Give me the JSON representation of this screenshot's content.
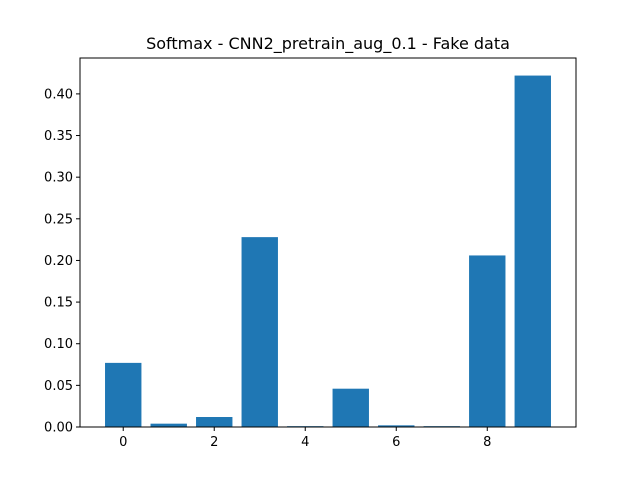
{
  "chart_data": {
    "type": "bar",
    "title": "Softmax - CNN2_pretrain_aug_0.1 - Fake data",
    "xlabel": "",
    "ylabel": "",
    "categories": [
      0,
      1,
      2,
      3,
      4,
      5,
      6,
      7,
      8,
      9
    ],
    "values": [
      0.077,
      0.004,
      0.012,
      0.228,
      0.001,
      0.046,
      0.002,
      0.001,
      0.206,
      0.422
    ],
    "xlim": [
      -0.95,
      9.95
    ],
    "ylim": [
      0,
      0.4431
    ],
    "xticks": [
      "0",
      "2",
      "4",
      "6",
      "8"
    ],
    "yticks": [
      "0.00",
      "0.05",
      "0.10",
      "0.15",
      "0.20",
      "0.25",
      "0.30",
      "0.35",
      "0.40"
    ],
    "bar_color": "#1f77b4",
    "grid": false
  }
}
